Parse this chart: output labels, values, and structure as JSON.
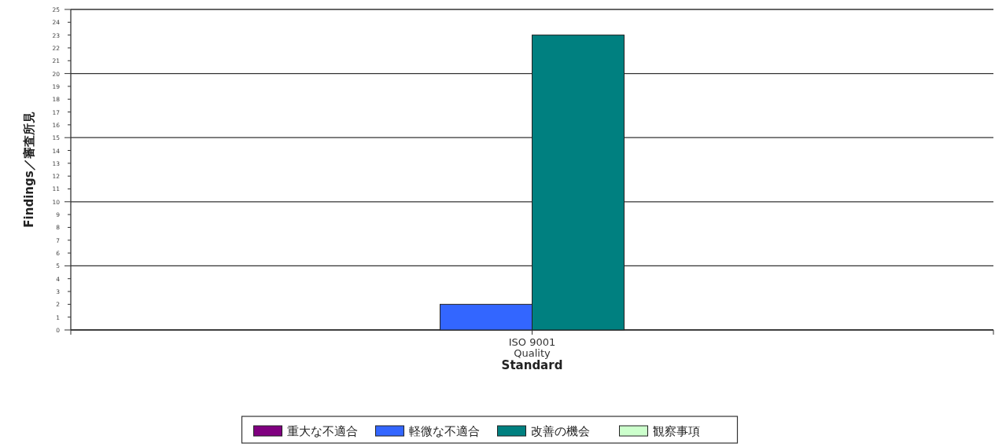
{
  "chart_data": {
    "type": "bar",
    "xlabel": "Standard",
    "ylabel": "Findings／審査所見",
    "categories": [
      "ISO 9001\nQuality"
    ],
    "series": [
      {
        "name": "重大な不適合",
        "color": "#800080",
        "values": [
          0
        ]
      },
      {
        "name": "軽微な不適合",
        "color": "#3366ff",
        "values": [
          2
        ]
      },
      {
        "name": "改善の機会",
        "color": "#008080",
        "values": [
          23
        ]
      },
      {
        "name": "観察事項",
        "color": "#ccffcc",
        "values": [
          0
        ]
      }
    ],
    "ylim": [
      0,
      25
    ],
    "yticks": [
      0,
      1,
      2,
      3,
      4,
      5,
      6,
      7,
      8,
      9,
      10,
      11,
      12,
      13,
      14,
      15,
      16,
      17,
      18,
      19,
      20,
      21,
      22,
      23,
      24,
      25
    ],
    "grid": "y",
    "legend": "bottom"
  }
}
